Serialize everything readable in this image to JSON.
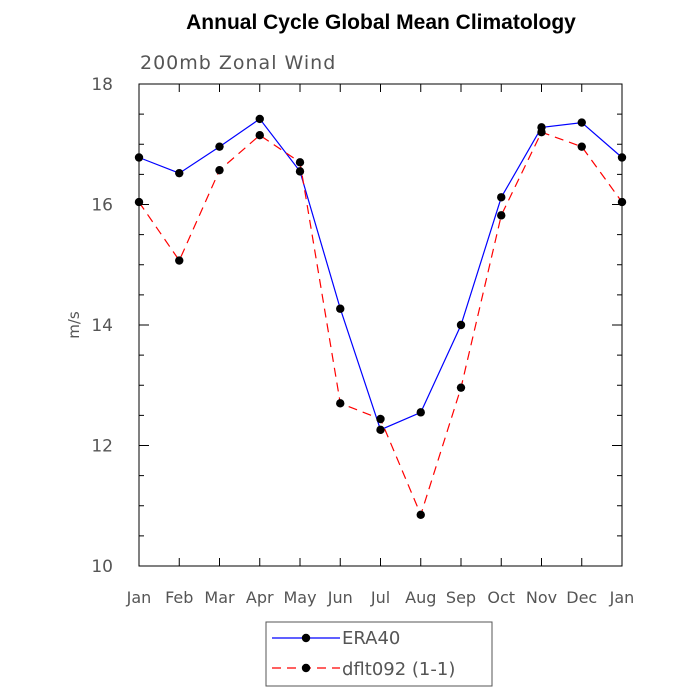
{
  "chart_data": {
    "type": "line",
    "title": "Annual Cycle Global Mean Climatology",
    "subtitle": "200mb Zonal Wind",
    "xlabel": "",
    "ylabel": "m/s",
    "categories": [
      "Jan",
      "Feb",
      "Mar",
      "Apr",
      "May",
      "Jun",
      "Jul",
      "Aug",
      "Sep",
      "Oct",
      "Nov",
      "Dec",
      "Jan"
    ],
    "ylim": [
      10,
      18
    ],
    "yticks": [
      10,
      12,
      14,
      16,
      18
    ],
    "ytick_labels": [
      "10",
      "12",
      "14",
      "16",
      "18"
    ],
    "grid": false,
    "legend_position": "bottom-center",
    "series": [
      {
        "name": "ERA40",
        "color": "#0000ff",
        "dash": "solid",
        "marker": "filled-circle",
        "values": [
          16.78,
          16.52,
          16.96,
          17.42,
          16.55,
          14.27,
          12.26,
          12.55,
          14.0,
          16.12,
          17.28,
          17.36,
          16.78
        ]
      },
      {
        "name": "dflt092 (1-1)",
        "color": "#ff0000",
        "dash": "dashed",
        "marker": "filled-circle",
        "values": [
          16.04,
          15.07,
          16.57,
          17.15,
          16.7,
          12.7,
          12.44,
          10.85,
          12.96,
          15.82,
          17.2,
          16.96,
          16.04
        ]
      }
    ]
  }
}
